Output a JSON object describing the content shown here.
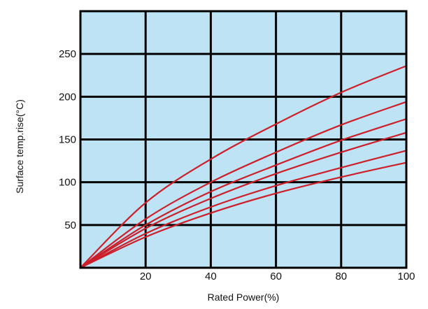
{
  "chart_data": {
    "type": "line",
    "title": "",
    "xlabel": "Rated Power(%)",
    "ylabel": "Surface temp.rise(°C)",
    "xlim": [
      0,
      100
    ],
    "ylim": [
      0,
      300
    ],
    "xticks": [
      20,
      40,
      60,
      80,
      100
    ],
    "yticks": [
      50,
      100,
      150,
      200,
      250
    ],
    "x_tick_labels": [
      "20",
      "40",
      "60",
      "80",
      "100"
    ],
    "y_tick_labels": [
      "50",
      "100",
      "150",
      "200",
      "250"
    ],
    "grid": true,
    "legend": "none",
    "colors": {
      "plot_background": "#bde3f5",
      "grid": "#000000",
      "series": "#cc1f2a"
    },
    "series": [
      {
        "x": [
          0,
          20,
          40,
          60,
          80,
          100
        ],
        "values": [
          0,
          76,
          127,
          168,
          205,
          236
        ]
      },
      {
        "x": [
          0,
          20,
          40,
          60,
          80,
          100
        ],
        "values": [
          0,
          57,
          100,
          135,
          167,
          194
        ]
      },
      {
        "x": [
          0,
          20,
          40,
          60,
          80,
          100
        ],
        "values": [
          0,
          50,
          89,
          120,
          149,
          174
        ]
      },
      {
        "x": [
          0,
          20,
          40,
          60,
          80,
          100
        ],
        "values": [
          0,
          46,
          81,
          110,
          135,
          158
        ]
      },
      {
        "x": [
          0,
          20,
          40,
          60,
          80,
          100
        ],
        "values": [
          0,
          40,
          71,
          96,
          117,
          137
        ]
      },
      {
        "x": [
          0,
          20,
          40,
          60,
          80,
          100
        ],
        "values": [
          0,
          36,
          64,
          87,
          106,
          123
        ]
      }
    ]
  }
}
